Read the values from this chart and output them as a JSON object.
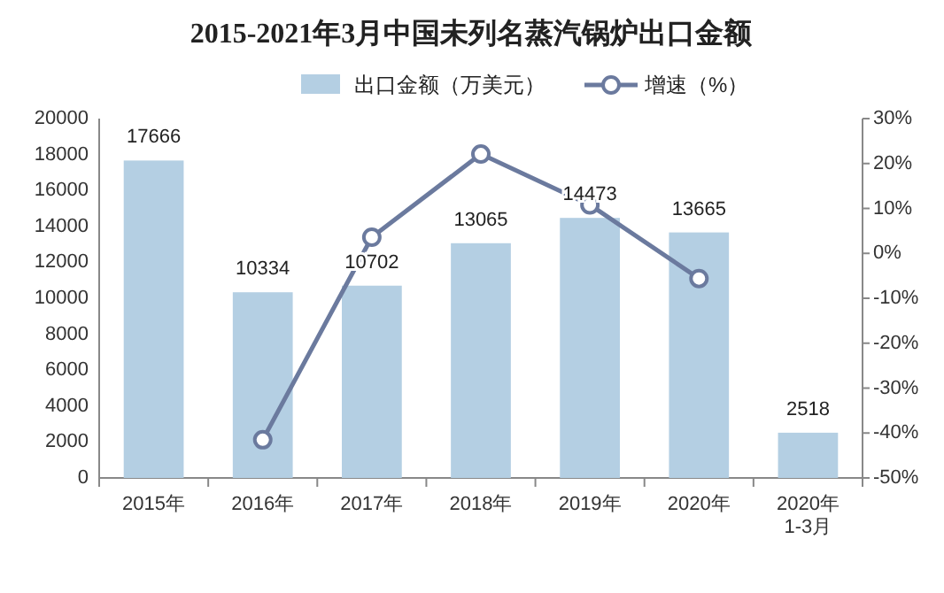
{
  "chart_data": {
    "type": "bar",
    "title": "2015-2021年3月中国未列名蒸汽锅炉出口金额",
    "categories": [
      "2015年",
      "2016年",
      "2017年",
      "2018年",
      "2019年",
      "2020年",
      "2020年\n1-3月"
    ],
    "series": [
      {
        "name": "出口金额（万美元）",
        "color": "#b4cfe3",
        "values": [
          17666,
          10334,
          10702,
          13065,
          14473,
          13665,
          2518
        ],
        "value_labels": [
          "17666",
          "10334",
          "10702",
          "13065",
          "14473",
          "13665",
          "2518"
        ]
      },
      {
        "name": "增速（%）",
        "type": "line",
        "axis": "y2",
        "color": "#6b7a9e",
        "values": [
          null,
          -41.5,
          3.6,
          22.1,
          10.8,
          -5.6,
          null
        ]
      }
    ],
    "ylim": [
      0,
      20000
    ],
    "yticks": [
      0,
      2000,
      4000,
      6000,
      8000,
      10000,
      12000,
      14000,
      16000,
      18000,
      20000
    ],
    "y2lim": [
      -50,
      30
    ],
    "y2ticks": [
      {
        "value": -50,
        "label": "-50%"
      },
      {
        "value": -40,
        "label": "-40%"
      },
      {
        "value": -30,
        "label": "-30%"
      },
      {
        "value": -20,
        "label": "-20%"
      },
      {
        "value": -10,
        "label": "-10%"
      },
      {
        "value": 0,
        "label": "0%"
      },
      {
        "value": 10,
        "label": "10%"
      },
      {
        "value": 20,
        "label": "20%"
      },
      {
        "value": 30,
        "label": "30%"
      }
    ],
    "legend": "top",
    "marker": "circle",
    "grid": false
  }
}
